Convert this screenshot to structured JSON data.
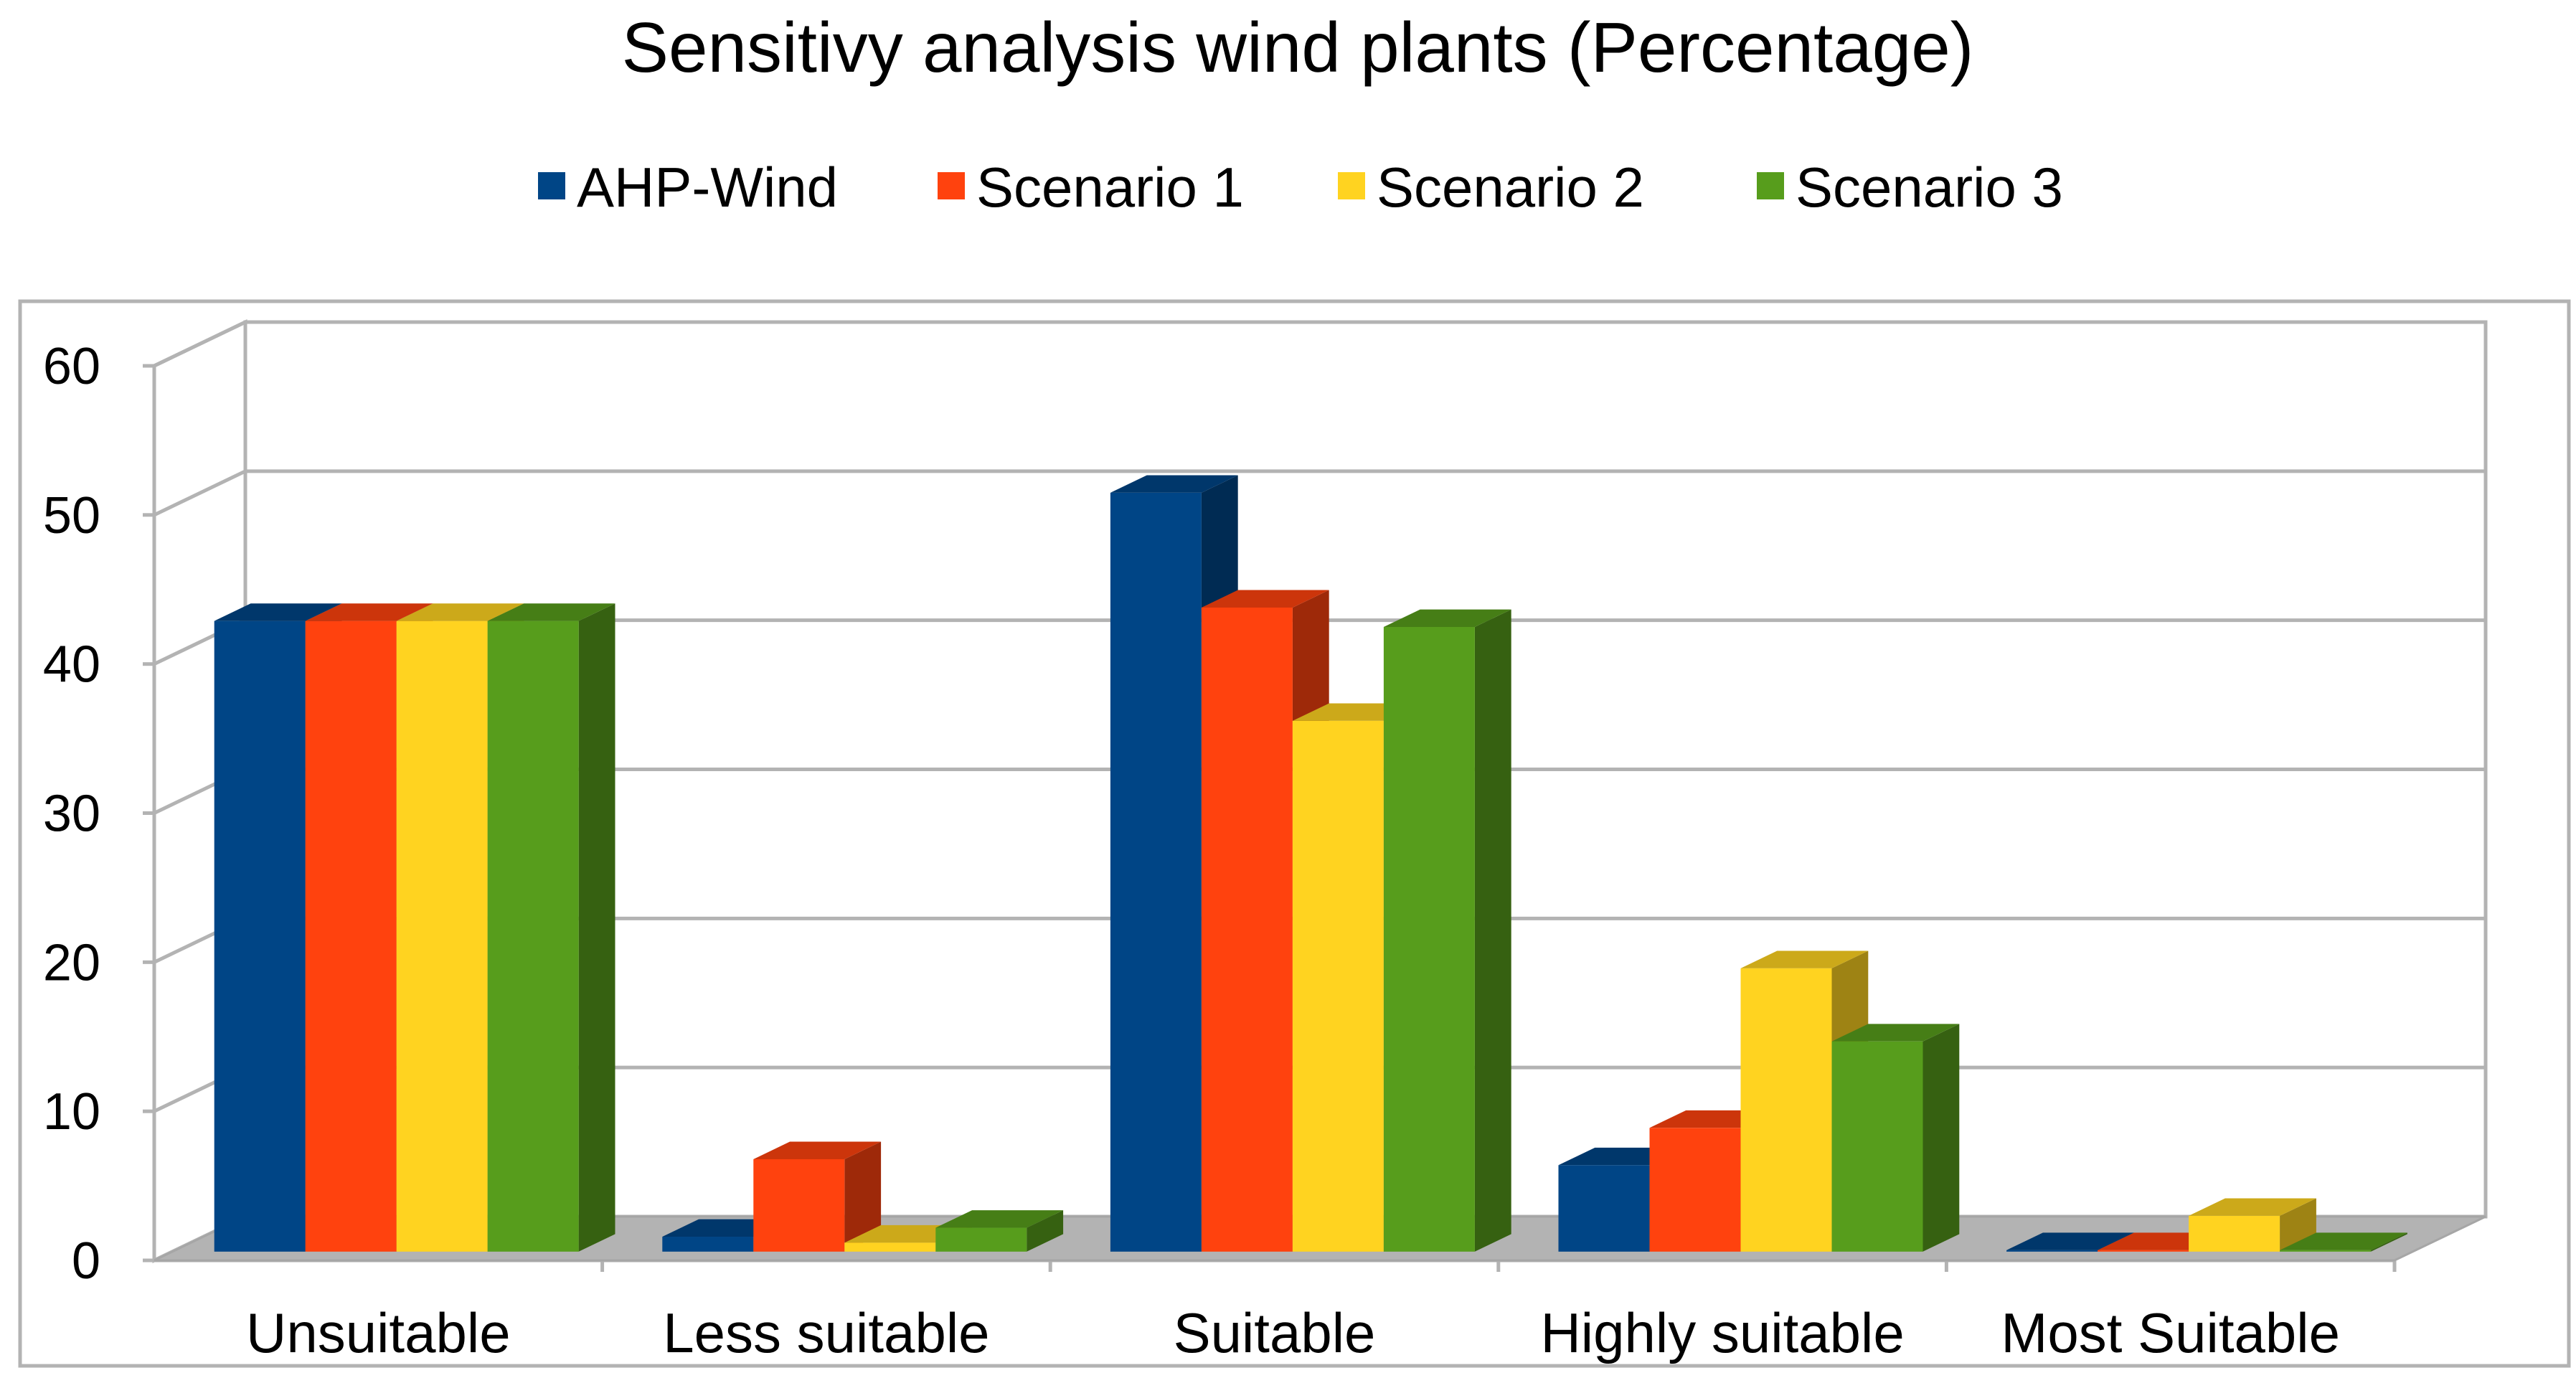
{
  "chart_data": {
    "type": "bar",
    "title": "Sensitivy analysis wind plants (Percentage)",
    "xlabel": "",
    "ylabel": "",
    "ylim": [
      0,
      60
    ],
    "yticks": [
      "0",
      "10",
      "20",
      "30",
      "40",
      "50",
      "60"
    ],
    "grid": true,
    "legend_position": "top",
    "categories": [
      "Unsuitable",
      "Less suitable",
      "Suitable",
      "Highly suitable",
      "Most Suitable"
    ],
    "series": [
      {
        "name": "AHP-Wind",
        "color": "#004586",
        "values": [
          42.3,
          1.0,
          50.9,
          5.8,
          0.1
        ]
      },
      {
        "name": "Scenario 1",
        "color": "#FF420E",
        "values": [
          42.3,
          6.2,
          43.2,
          8.3,
          0.1
        ]
      },
      {
        "name": "Scenario 2",
        "color": "#FFD320",
        "values": [
          42.3,
          0.6,
          35.6,
          19.0,
          2.4
        ]
      },
      {
        "name": "Scenario 3",
        "color": "#579D1C",
        "values": [
          42.3,
          1.6,
          41.9,
          14.1,
          0.1
        ]
      }
    ]
  }
}
